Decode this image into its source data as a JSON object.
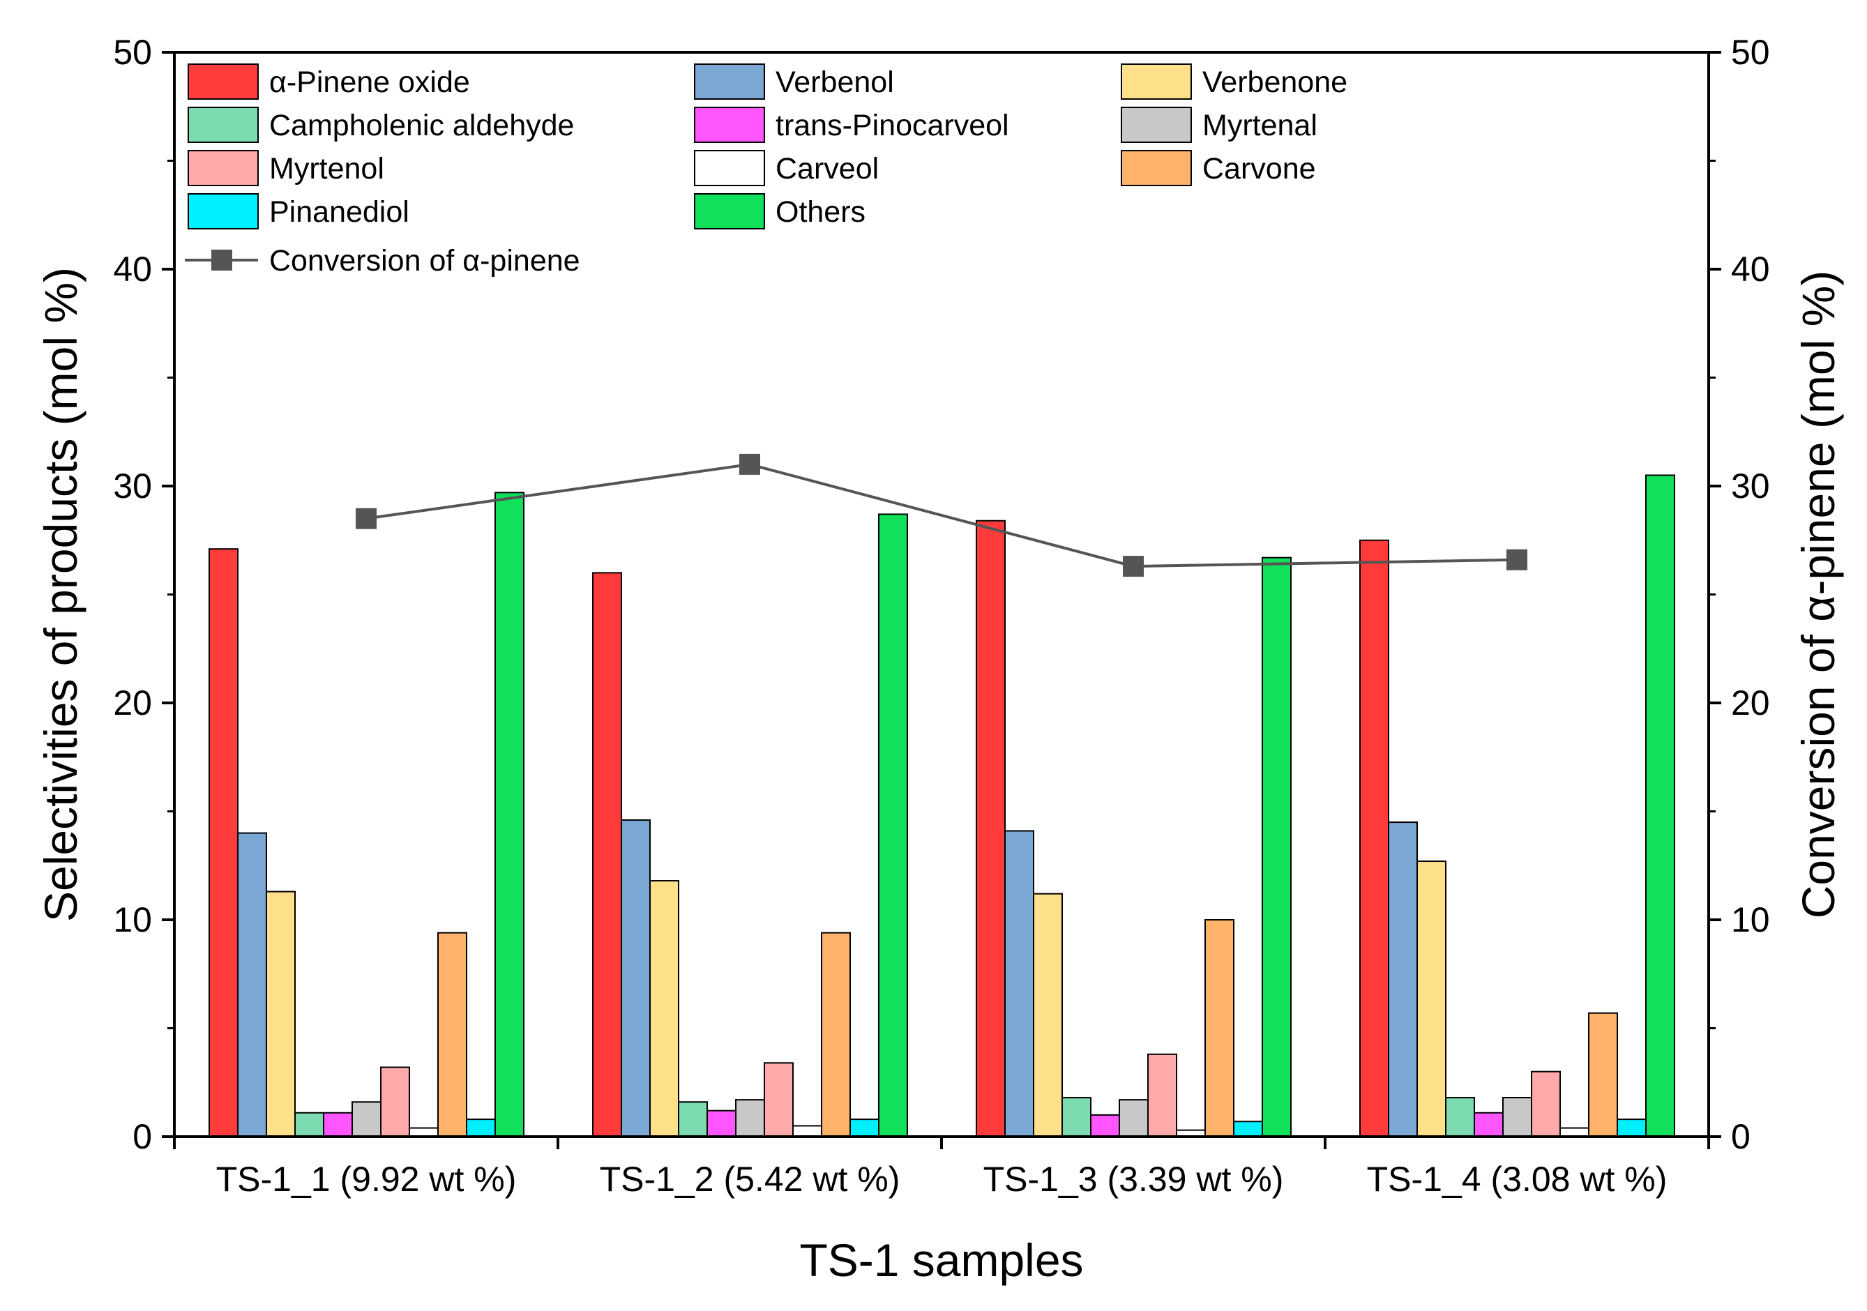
{
  "chart_data": {
    "type": "bar",
    "xlabel": "TS-1 samples",
    "ylabel": "Selectivities of products (mol %)",
    "y2label": "Conversion of α-pinene (mol %)",
    "ylim": [
      0,
      50
    ],
    "y2lim": [
      0,
      50
    ],
    "yticks": [
      "0",
      "10",
      "20",
      "30",
      "40",
      "50"
    ],
    "y2ticks": [
      "0",
      "10",
      "20",
      "30",
      "40",
      "50"
    ],
    "grid": false,
    "legend_position": "top-left",
    "categories": [
      "TS-1_1 (9.92 wt %)",
      "TS-1_2 (5.42 wt %)",
      "TS-1_3 (3.39 wt %)",
      "TS-1_4 (3.08 wt %)"
    ],
    "series": [
      {
        "name": "α-Pinene oxide",
        "color": "#ff3b3b",
        "values": [
          27.1,
          26.0,
          28.4,
          27.5
        ]
      },
      {
        "name": "Verbenol",
        "color": "#7ba7d4",
        "values": [
          14.0,
          14.6,
          14.1,
          14.5
        ]
      },
      {
        "name": "Verbenone",
        "color": "#ffe08a",
        "values": [
          11.3,
          11.8,
          11.2,
          12.7
        ]
      },
      {
        "name": "Campholenic aldehyde",
        "color": "#7ddbb0",
        "values": [
          1.1,
          1.6,
          1.8,
          1.8
        ]
      },
      {
        "name": "trans-Pinocarveol",
        "color": "#ff55ff",
        "values": [
          1.1,
          1.2,
          1.0,
          1.1
        ]
      },
      {
        "name": "Myrtenal",
        "color": "#c8c8c8",
        "values": [
          1.6,
          1.7,
          1.7,
          1.8
        ]
      },
      {
        "name": "Myrtenol",
        "color": "#ffaaaa",
        "values": [
          3.2,
          3.4,
          3.8,
          3.0
        ]
      },
      {
        "name": "Carveol",
        "color": "#ffffff",
        "values": [
          0.4,
          0.5,
          0.3,
          0.4
        ]
      },
      {
        "name": "Carvone",
        "color": "#ffb26a",
        "values": [
          9.4,
          9.4,
          10.0,
          5.7
        ]
      },
      {
        "name": "Pinanediol",
        "color": "#00f0ff",
        "values": [
          0.8,
          0.8,
          0.7,
          0.8
        ]
      },
      {
        "name": "Others",
        "color": "#11e05a",
        "values": [
          29.7,
          28.7,
          26.7,
          30.5
        ]
      }
    ],
    "line_series": {
      "name": "Conversion of α-pinene",
      "color": "#555555",
      "axis": "right",
      "values": [
        28.5,
        31.0,
        26.3,
        26.6
      ]
    }
  }
}
